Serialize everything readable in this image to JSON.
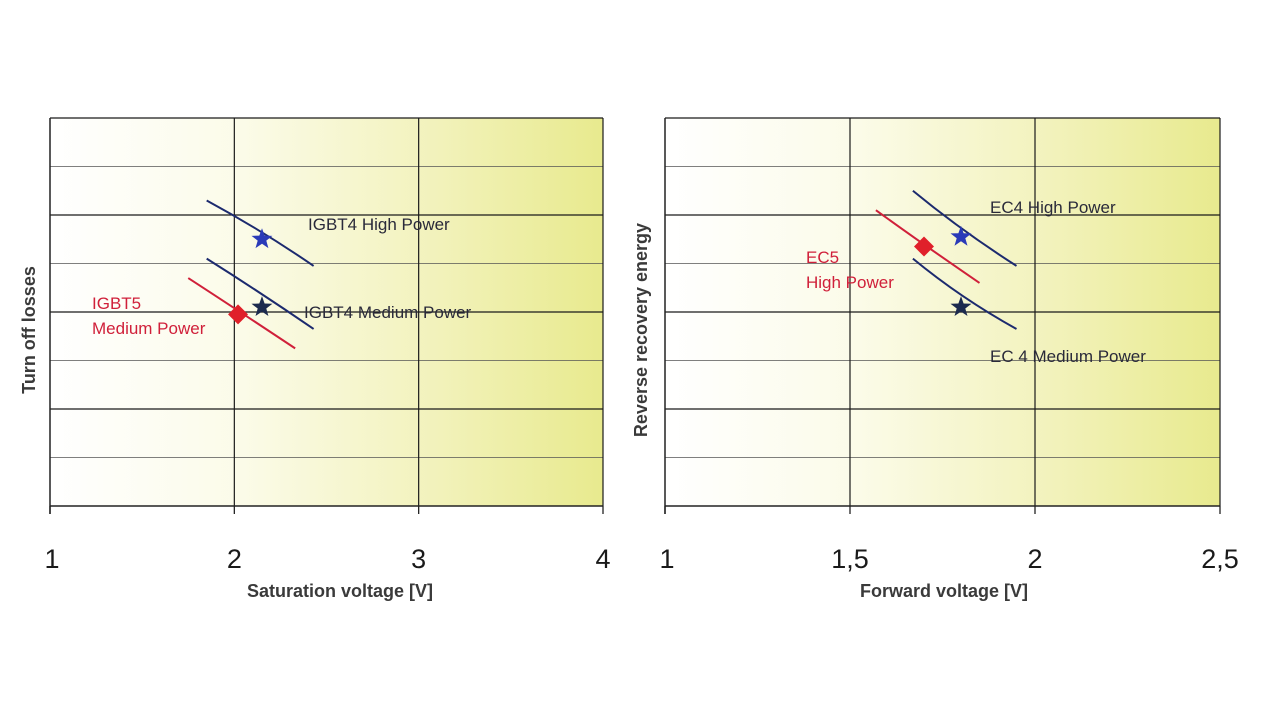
{
  "chart_data": [
    {
      "type": "line",
      "title": "",
      "xlabel": "Saturation voltage [V]",
      "ylabel": "Turn off losses",
      "xlim": [
        1,
        4
      ],
      "ylim": [
        0,
        8
      ],
      "x_ticks": [
        "1",
        "2",
        "3",
        "4"
      ],
      "x_tick_values": [
        1,
        2,
        3,
        4
      ],
      "grid": true,
      "background": "gradient white-to-yellow toward right",
      "series": [
        {
          "name": "IGBT4 High Power",
          "color": "#1c2a6e",
          "x": [
            1.85,
            2.15,
            2.43
          ],
          "y": [
            6.3,
            5.6,
            4.95
          ]
        },
        {
          "name": "IGBT4 Medium Power",
          "color": "#1c2a6e",
          "x": [
            1.85,
            2.15,
            2.43
          ],
          "y": [
            5.1,
            4.3,
            3.65
          ]
        },
        {
          "name": "IGBT5 Medium Power",
          "color": "#d0203a",
          "x": [
            1.75,
            2.0,
            2.33
          ],
          "y": [
            4.7,
            4.0,
            3.25
          ]
        }
      ],
      "markers": [
        {
          "label": "IGBT4 High Power",
          "shape": "star",
          "color": "#2a3ab8",
          "x": 2.15,
          "y": 5.5
        },
        {
          "label": "IGBT4 Medium Power",
          "shape": "star",
          "color": "#1c2a4e",
          "x": 2.15,
          "y": 4.1
        },
        {
          "label": "IGBT5 Medium Power",
          "shape": "diamond",
          "color": "#e0202a",
          "x": 2.02,
          "y": 3.95
        }
      ],
      "annotations": [
        {
          "text": "IGBT4 High Power",
          "color": "#2a2a3a"
        },
        {
          "text": "IGBT4 Medium Power",
          "color": "#2a2a3a"
        },
        {
          "text_lines": [
            "IGBT5",
            "Medium Power"
          ],
          "color": "#d0203a"
        }
      ]
    },
    {
      "type": "line",
      "title": "",
      "xlabel": "Forward voltage [V]",
      "ylabel": "Reverse recovery energy",
      "xlim": [
        1,
        2.5
      ],
      "ylim": [
        0,
        8
      ],
      "x_ticks": [
        "1",
        "1,5",
        "2",
        "2,5"
      ],
      "x_tick_values": [
        1,
        1.5,
        2,
        2.5
      ],
      "grid": true,
      "background": "gradient white-to-yellow toward right",
      "series": [
        {
          "name": "EC4 High Power",
          "color": "#1c2a6e",
          "x": [
            1.67,
            1.8,
            1.95
          ],
          "y": [
            6.5,
            5.6,
            4.95
          ]
        },
        {
          "name": "EC 4 Medium Power",
          "color": "#1c2a6e",
          "x": [
            1.67,
            1.8,
            1.95
          ],
          "y": [
            5.1,
            4.2,
            3.65
          ]
        },
        {
          "name": "EC5 High Power",
          "color": "#d0203a",
          "x": [
            1.57,
            1.7,
            1.85
          ],
          "y": [
            6.1,
            5.3,
            4.6
          ]
        }
      ],
      "markers": [
        {
          "label": "EC4 High Power",
          "shape": "star",
          "color": "#2a3ab8",
          "x": 1.8,
          "y": 5.55
        },
        {
          "label": "EC 4 Medium Power",
          "shape": "star",
          "color": "#1c2a4e",
          "x": 1.8,
          "y": 4.1
        },
        {
          "label": "EC5 High Power",
          "shape": "diamond",
          "color": "#e0202a",
          "x": 1.7,
          "y": 5.35
        }
      ],
      "annotations": [
        {
          "text": "EC4 High Power",
          "color": "#2a2a3a"
        },
        {
          "text": "EC 4 Medium Power",
          "color": "#2a2a3a"
        },
        {
          "text_lines": [
            "EC5",
            "High Power"
          ],
          "color": "#d0203a"
        }
      ]
    }
  ]
}
